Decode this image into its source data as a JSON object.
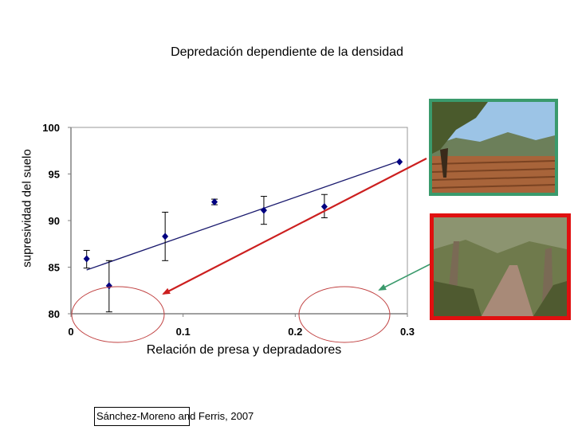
{
  "slide": {
    "title": "Depredación dependiente de la densidad",
    "citation": "Sánchez-Moreno and Ferris, 2007"
  },
  "chart_data": {
    "type": "scatter",
    "title": "",
    "xlabel": "Relación de presa y depradadores",
    "ylabel": "supresividad del suelo",
    "xlim": [
      0,
      0.3
    ],
    "ylim": [
      80,
      100
    ],
    "x_ticks": [
      "0",
      "0.1",
      "0.2",
      "0.3"
    ],
    "y_ticks": [
      "80",
      "85",
      "90",
      "95",
      "100"
    ],
    "grid": false,
    "marker_color": "#000080",
    "trendline_color": "#1a1a6e",
    "points": [
      {
        "x": 0.014,
        "y": 85.9,
        "err_low": 84.9,
        "err_high": 86.8
      },
      {
        "x": 0.034,
        "y": 83.0,
        "err_low": 80.2,
        "err_high": 85.7
      },
      {
        "x": 0.084,
        "y": 88.3,
        "err_low": 85.7,
        "err_high": 90.9
      },
      {
        "x": 0.128,
        "y": 92.0,
        "err_low": 91.7,
        "err_high": 92.3
      },
      {
        "x": 0.172,
        "y": 91.1,
        "err_low": 89.6,
        "err_high": 92.6
      },
      {
        "x": 0.226,
        "y": 91.5,
        "err_low": 90.3,
        "err_high": 92.8
      },
      {
        "x": 0.293,
        "y": 96.3,
        "err_low": 96.3,
        "err_high": 96.3
      }
    ],
    "trendline": {
      "x": [
        0.014,
        0.293
      ],
      "y": [
        84.7,
        96.4
      ]
    }
  },
  "annotations": {
    "red_arrow_color": "#cc1f1f",
    "green_arrow_color": "#3a9a6c",
    "ellipse_color": "#c04040"
  },
  "photos": {
    "top": {
      "border_color": "#3a9a6c",
      "subject": "vineyard-landscape"
    },
    "bottom": {
      "border_color": "#e01010",
      "subject": "oak-woodland-path"
    }
  }
}
